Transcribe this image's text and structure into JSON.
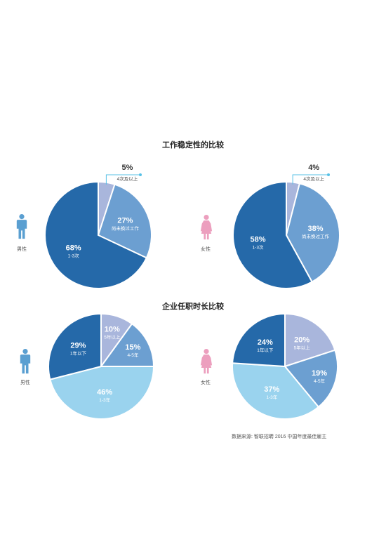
{
  "page": {
    "title1": "工作稳定性的比较",
    "title2": "企业任职时长比较",
    "source": "数据来源: 智联招聘 2016 中国年度最佳雇主"
  },
  "people": {
    "male": "男性",
    "female": "女性"
  },
  "colors": {
    "dark": "#2569a9",
    "mid": "#6c9fd1",
    "light": "#a9b6dc",
    "sky": "#9ad3ee",
    "leader": "#57c1e6",
    "male_icon": "#5a9fd1",
    "female_icon": "#ec9fbe"
  },
  "chart_data": [
    {
      "type": "pie",
      "group": "男性",
      "title": "工作稳定性的比较",
      "slices": [
        {
          "label": "4次及以上",
          "value": 5,
          "color": "#a9b6dc",
          "outside": true
        },
        {
          "label": "尚未换过工作",
          "value": 27,
          "color": "#6c9fd1"
        },
        {
          "label": "1-3次",
          "value": 68,
          "color": "#2569a9"
        }
      ]
    },
    {
      "type": "pie",
      "group": "女性",
      "title": "工作稳定性的比较",
      "slices": [
        {
          "label": "4次及以上",
          "value": 4,
          "color": "#a9b6dc",
          "outside": true
        },
        {
          "label": "尚未换过工作",
          "value": 38,
          "color": "#6c9fd1"
        },
        {
          "label": "1-3次",
          "value": 58,
          "color": "#2569a9"
        }
      ]
    },
    {
      "type": "pie",
      "group": "男性",
      "title": "企业任职时长比较",
      "slices": [
        {
          "label": "5年以上",
          "value": 10,
          "color": "#a9b6dc"
        },
        {
          "label": "4-5年",
          "value": 15,
          "color": "#6c9fd1"
        },
        {
          "label": "1-3年",
          "value": 46,
          "color": "#9ad3ee"
        },
        {
          "label": "1年以下",
          "value": 29,
          "color": "#2569a9"
        }
      ]
    },
    {
      "type": "pie",
      "group": "女性",
      "title": "企业任职时长比较",
      "slices": [
        {
          "label": "5年以上",
          "value": 20,
          "color": "#a9b6dc"
        },
        {
          "label": "4-5年",
          "value": 19,
          "color": "#6c9fd1"
        },
        {
          "label": "1-3年",
          "value": 37,
          "color": "#9ad3ee"
        },
        {
          "label": "1年以下",
          "value": 24,
          "color": "#2569a9"
        }
      ]
    }
  ]
}
